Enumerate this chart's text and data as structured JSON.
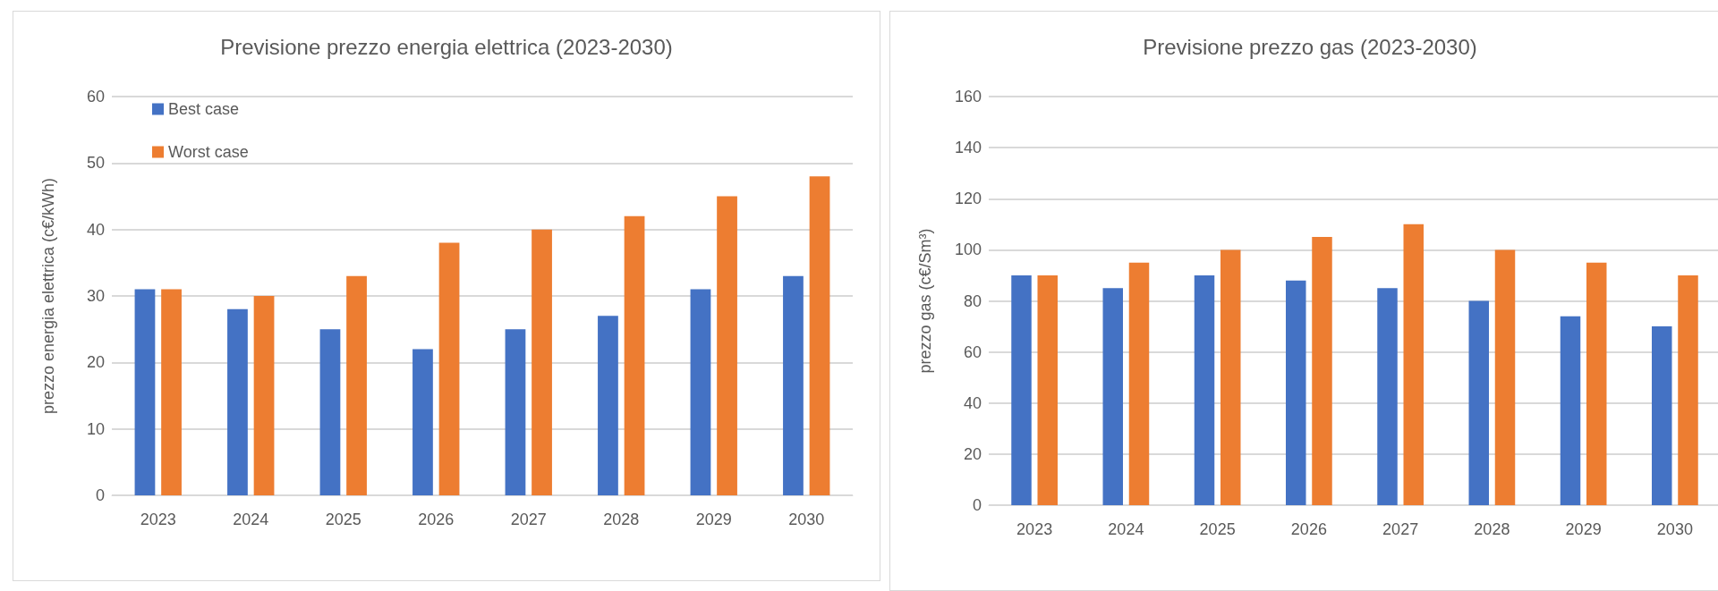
{
  "chart_data": [
    {
      "type": "bar",
      "title": "Previsione prezzo energia elettrica (2023-2030)",
      "ylabel": "prezzo energia elettrica (c€/kWh)",
      "categories": [
        "2023",
        "2024",
        "2025",
        "2026",
        "2027",
        "2028",
        "2029",
        "2030"
      ],
      "series": [
        {
          "name": "Best case",
          "color": "#4472c4",
          "values": [
            31,
            28,
            25,
            22,
            25,
            27,
            31,
            33
          ]
        },
        {
          "name": "Worst case",
          "color": "#ed7d31",
          "values": [
            31,
            30,
            33,
            38,
            40,
            42,
            45,
            48
          ]
        }
      ],
      "ylim": [
        0,
        60
      ],
      "yticks": [
        0,
        10,
        20,
        30,
        40,
        50,
        60
      ],
      "grid": "y",
      "legend": "top left"
    },
    {
      "type": "bar",
      "title": "Previsione prezzo gas (2023-2030)",
      "ylabel": "prezzo gas (c€/Sm³)",
      "categories": [
        "2023",
        "2024",
        "2025",
        "2026",
        "2027",
        "2028",
        "2029",
        "2030"
      ],
      "series": [
        {
          "color": "#4472c4",
          "values": [
            90,
            85,
            90,
            88,
            85,
            80,
            74,
            70
          ]
        },
        {
          "color": "#ed7d31",
          "values": [
            90,
            95,
            100,
            105,
            110,
            100,
            95,
            90
          ]
        }
      ],
      "ylim": [
        0,
        160
      ],
      "yticks": [
        0,
        20,
        40,
        60,
        80,
        100,
        120,
        140,
        160
      ],
      "grid": "y",
      "legend": false
    }
  ]
}
